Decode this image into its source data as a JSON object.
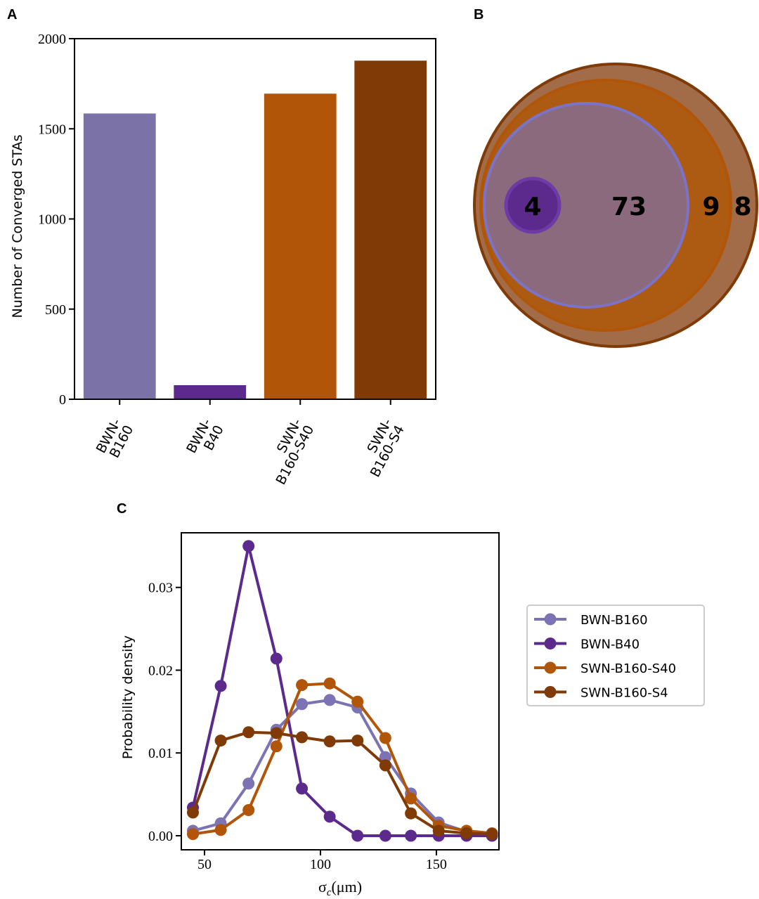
{
  "chart_data": [
    {
      "panel": "A",
      "type": "bar",
      "categories": [
        {
          "lines": [
            "BWN-",
            "B160"
          ]
        },
        {
          "lines": [
            "BWN-",
            "B40"
          ]
        },
        {
          "lines": [
            "SWN-",
            "B160-S40"
          ]
        },
        {
          "lines": [
            "SWN-",
            "B160-S4"
          ]
        }
      ],
      "values": [
        1585,
        78,
        1695,
        1878
      ],
      "colors": [
        "#7b73a8",
        "#5c2a8c",
        "#b15508",
        "#7f3a06"
      ],
      "ylabel": "Number of Converged STAs",
      "ylim": [
        0,
        2000
      ],
      "yticks": [
        0,
        500,
        1000,
        1500,
        2000
      ]
    },
    {
      "panel": "B",
      "type": "venn",
      "sets": [
        {
          "label": "8",
          "color": "#a16c47",
          "edge": "#7f3a06"
        },
        {
          "label": "9",
          "color": "#ad5a12",
          "edge": "#b15508"
        },
        {
          "label": "73",
          "color": "#8b6a7d",
          "edge": "#7b73c8"
        },
        {
          "label": "4",
          "color": "#5c2a8c",
          "edge": "#6e3aa6"
        }
      ]
    },
    {
      "panel": "C",
      "type": "line",
      "xlabel": "σc(μm)",
      "ylabel": "Probability density",
      "xlim": [
        40,
        177
      ],
      "ylim": [
        -0.0017,
        0.0366
      ],
      "xticks": [
        50,
        100,
        150
      ],
      "yticks": [
        {
          "value": 0,
          "label": "0.00"
        },
        {
          "value": 0.01,
          "label": "0.01"
        },
        {
          "value": 0.02,
          "label": "0.02"
        },
        {
          "value": 0.03,
          "label": "0.03"
        }
      ],
      "x": [
        45,
        57,
        69,
        81,
        92,
        104,
        116,
        128,
        139,
        151,
        163,
        174
      ],
      "legend_position": "right",
      "series": [
        {
          "name": "BWN-B160",
          "color": "#7b73b3",
          "values": [
            0.0006,
            0.0015,
            0.0063,
            0.0128,
            0.0159,
            0.0164,
            0.0155,
            0.0095,
            0.0051,
            0.0016,
            0.0005,
            0.0002
          ]
        },
        {
          "name": "BWN-B40",
          "color": "#5c2a8c",
          "values": [
            0.0034,
            0.0181,
            0.035,
            0.0214,
            0.0057,
            0.0023,
            0.0,
            0.0,
            0.0,
            0.0,
            0.0,
            0.0
          ]
        },
        {
          "name": "SWN-B160-S40",
          "color": "#b15508",
          "values": [
            0.0002,
            0.0007,
            0.0031,
            0.0108,
            0.0182,
            0.0184,
            0.0162,
            0.0118,
            0.0045,
            0.0012,
            0.0006,
            0.0003
          ]
        },
        {
          "name": "SWN-B160-S4",
          "color": "#7f3a06",
          "values": [
            0.0028,
            0.0115,
            0.0125,
            0.0124,
            0.0119,
            0.0114,
            0.0115,
            0.0085,
            0.0027,
            0.0006,
            0.0003,
            0.0002
          ]
        }
      ]
    }
  ],
  "panels": {
    "a": "A",
    "b": "B",
    "c": "C"
  }
}
